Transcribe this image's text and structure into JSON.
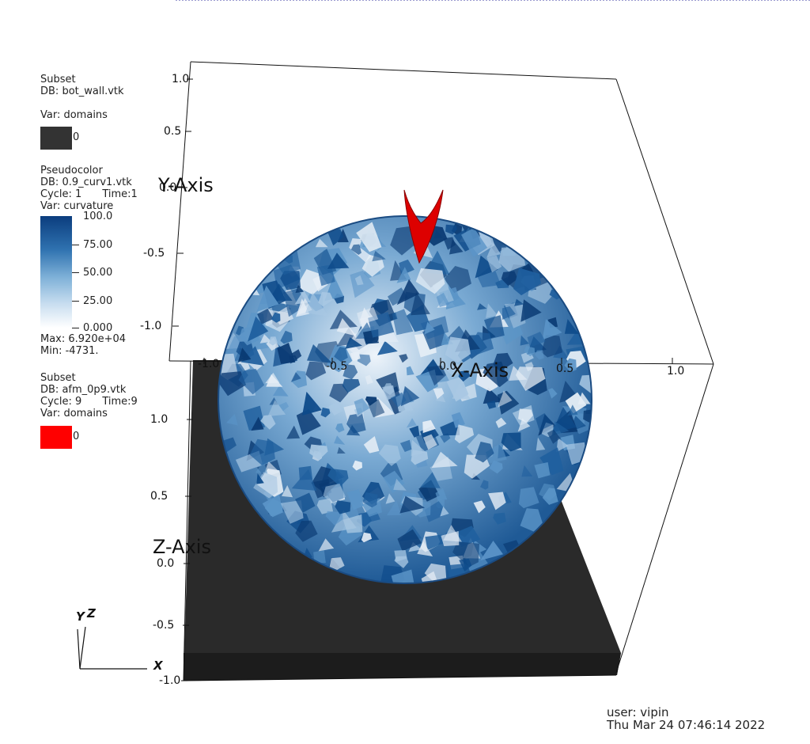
{
  "legends": {
    "bot_wall": {
      "plot_type": "Subset",
      "db": "DB: bot_wall.vtk",
      "var": "Var: domains",
      "swatch_label": "0",
      "swatch_color": "#333333"
    },
    "pseudocolor": {
      "plot_type": "Pseudocolor",
      "db": "DB: 0.9_curv1.vtk",
      "cycle": "Cycle: 1",
      "time": "Time:1",
      "var": "Var: curvature",
      "ticks": [
        "100.0",
        "75.00",
        "50.00",
        "25.00",
        "0.000"
      ],
      "max": "Max:  6.920e+04",
      "min": "Min: -4731."
    },
    "afm": {
      "plot_type": "Subset",
      "db": "DB: afm_0p9.vtk",
      "cycle": "Cycle: 9",
      "time": "Time:9",
      "var": "Var: domains",
      "swatch_label": "0",
      "swatch_color": "#ff0000"
    }
  },
  "axes": {
    "y_title": "Y-Axis",
    "x_title": "X-Axis",
    "z_title": "Z-Axis",
    "y_ticks": [
      "1.0",
      "0.5",
      "0.0",
      "-0.5",
      "-1.0"
    ],
    "x_ticks": [
      "-1.0",
      "-0.5",
      "0.0",
      "0.5",
      "1.0"
    ],
    "z_ticks": [
      "1.0",
      "0.5",
      "0.0",
      "-0.5",
      "-1.0"
    ]
  },
  "triad": {
    "y": "Y",
    "z": "Z",
    "x": "X"
  },
  "footer": {
    "user": "user: vipin",
    "timestamp": "Thu Mar 24 07:46:14 2022"
  },
  "colors": {
    "sphere_dark": "#0d4a8a",
    "sphere_mid": "#5b95c8",
    "sphere_light": "#e6eef6",
    "wall": "#2a2a2a",
    "afm": "#dd0000"
  }
}
